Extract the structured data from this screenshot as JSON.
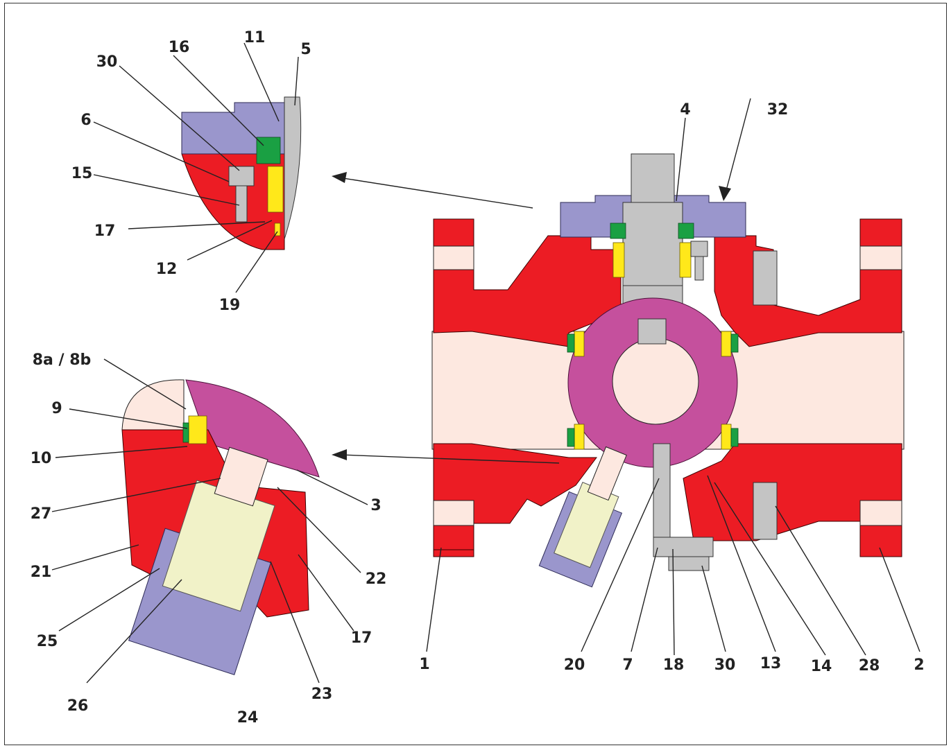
{
  "labels": {
    "l1": "1",
    "l2": "2",
    "l3": "3",
    "l4": "4",
    "l5": "5",
    "l6": "6",
    "l7": "7",
    "l8": "8a / 8b",
    "l9": "9",
    "l10": "10",
    "l11": "11",
    "l12": "12",
    "l13": "13",
    "l14": "14",
    "l15": "15",
    "l16": "16",
    "l17a": "17",
    "l17b": "17",
    "l18": "18",
    "l19": "19",
    "l20": "20",
    "l21": "21",
    "l22": "22",
    "l23": "23",
    "l24": "24",
    "l25": "25",
    "l26": "26",
    "l27": "27",
    "l28": "28",
    "l30a": "30",
    "l30b": "30",
    "l32": "32"
  },
  "colors": {
    "body": "#ec1c24",
    "bonnet": "#9a96cc",
    "ball": "#c5509d",
    "bore": "#fde8e0",
    "stem": "#c4c4c4",
    "spring": "#ffe81a",
    "seal": "#1aa043"
  }
}
